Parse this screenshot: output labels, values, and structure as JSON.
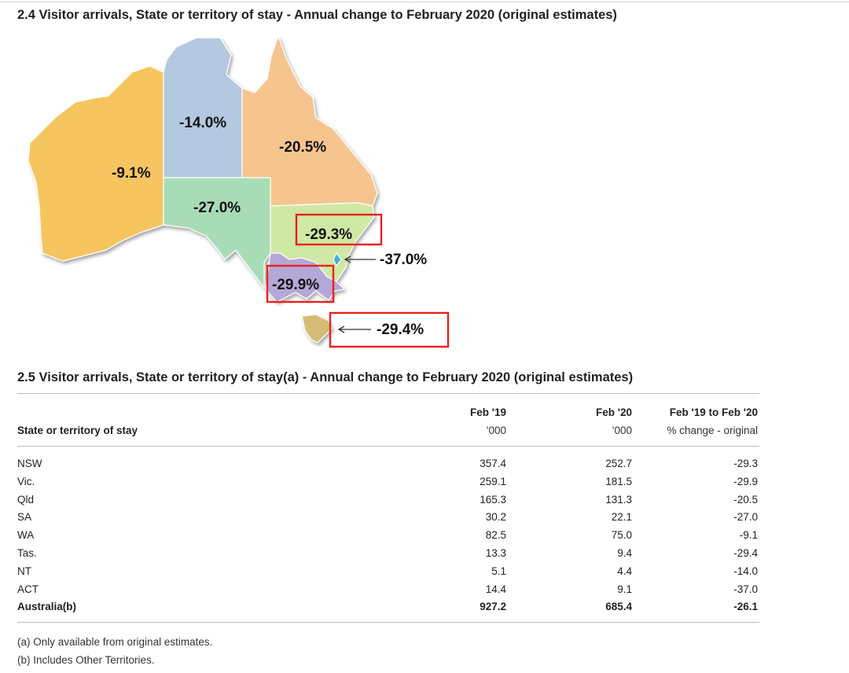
{
  "map": {
    "title": "2.4 Visitor arrivals, State or territory of stay - Annual change to February 2020 (original estimates)",
    "labels": {
      "wa": "-9.1%",
      "nt": "-14.0%",
      "qld": "-20.5%",
      "sa": "-27.0%",
      "nsw": "-29.3%",
      "vic": "-29.9%",
      "act": "-37.0%",
      "tas": "-29.4%"
    },
    "colors": {
      "wa": "#f6c55f",
      "nt": "#b4c9e0",
      "qld": "#f6c58f",
      "sa": "#a8dcb6",
      "nsw": "#cfe8a4",
      "vic": "#b4a8d8",
      "act": "#45b0d8",
      "tas": "#d6bc76",
      "highlight": "#e8201c"
    }
  },
  "chart_data": {
    "type": "table",
    "title": "2.5 Visitor arrivals, State or territory of stay(a) - Annual change to February 2020 (original estimates)",
    "columns": [
      {
        "name": "Feb '19",
        "unit": "'000"
      },
      {
        "name": "Feb '20",
        "unit": "'000"
      },
      {
        "name": "Feb '19 to Feb '20",
        "unit": "% change - original"
      }
    ],
    "row_header": "State or territory of stay",
    "rows": [
      {
        "name": "NSW",
        "feb19": "357.4",
        "feb20": "252.7",
        "change": "-29.3"
      },
      {
        "name": "Vic.",
        "feb19": "259.1",
        "feb20": "181.5",
        "change": "-29.9"
      },
      {
        "name": "Qld",
        "feb19": "165.3",
        "feb20": "131.3",
        "change": "-20.5"
      },
      {
        "name": "SA",
        "feb19": "30.2",
        "feb20": "22.1",
        "change": "-27.0"
      },
      {
        "name": "WA",
        "feb19": "82.5",
        "feb20": "75.0",
        "change": "-9.1"
      },
      {
        "name": "Tas.",
        "feb19": "13.3",
        "feb20": "9.4",
        "change": "-29.4"
      },
      {
        "name": "NT",
        "feb19": "5.1",
        "feb20": "4.4",
        "change": "-14.0"
      },
      {
        "name": "ACT",
        "feb19": "14.4",
        "feb20": "9.1",
        "change": "-37.0"
      }
    ],
    "total": {
      "name": "Australia(b)",
      "feb19": "927.2",
      "feb20": "685.4",
      "change": "-26.1"
    }
  },
  "notes": {
    "a": "(a) Only available from original estimates.",
    "b": "(b) Includes Other Territories."
  }
}
